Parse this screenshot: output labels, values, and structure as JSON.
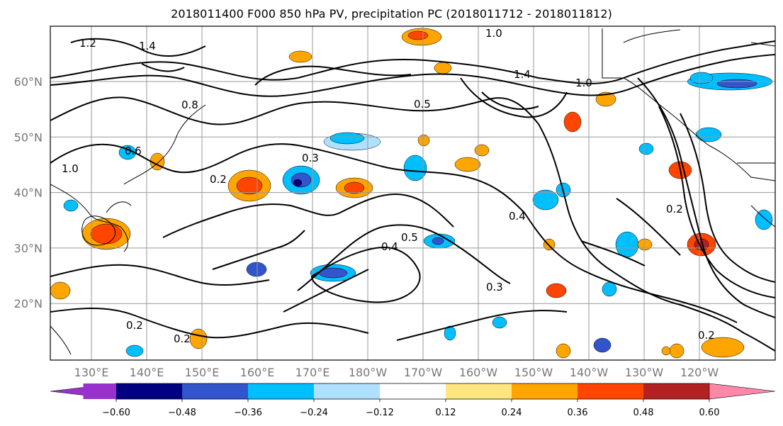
{
  "title": "2018011400 F000 850 hPa PV, precipitation PC (2018011712 - 2018011812)",
  "latitudes": [
    {
      "label": "60°N",
      "lat": 60
    },
    {
      "label": "50°N",
      "lat": 50
    },
    {
      "label": "40°N",
      "lat": 40
    },
    {
      "label": "30°N",
      "lat": 30
    },
    {
      "label": "20°N",
      "lat": 20
    }
  ],
  "longitudes": [
    {
      "label": "130°E",
      "lon": 130
    },
    {
      "label": "140°E",
      "lon": 140
    },
    {
      "label": "150°E",
      "lon": 150
    },
    {
      "label": "160°E",
      "lon": 160
    },
    {
      "label": "170°E",
      "lon": 170
    },
    {
      "label": "180°W",
      "lon": 180
    },
    {
      "label": "170°W",
      "lon": 190
    },
    {
      "label": "160°W",
      "lon": 200
    },
    {
      "label": "150°W",
      "lon": 210
    },
    {
      "label": "140°W",
      "lon": 220
    },
    {
      "label": "130°W",
      "lon": 230
    },
    {
      "label": "120°W",
      "lon": 240
    }
  ],
  "colorbar": {
    "levels": [
      "−0.60",
      "−0.48",
      "−0.36",
      "−0.24",
      "−0.12",
      "0.12",
      "0.24",
      "0.36",
      "0.48",
      "0.60"
    ],
    "colors": [
      "#9932cc",
      "#000080",
      "#3355cc",
      "#00bfff",
      "#b0e0ff",
      "#ffffff",
      "#ffe680",
      "#ffa500",
      "#ff4500",
      "#b22222",
      "#ff88aa"
    ]
  },
  "contour_labels": [
    "1.2",
    "1.4",
    "1.0",
    "0.8",
    "0.6",
    "0.5",
    "0.4",
    "0.3",
    "0.2"
  ],
  "colors": {
    "grid": "#999999",
    "contour": "#000000",
    "frame": "#000000"
  }
}
